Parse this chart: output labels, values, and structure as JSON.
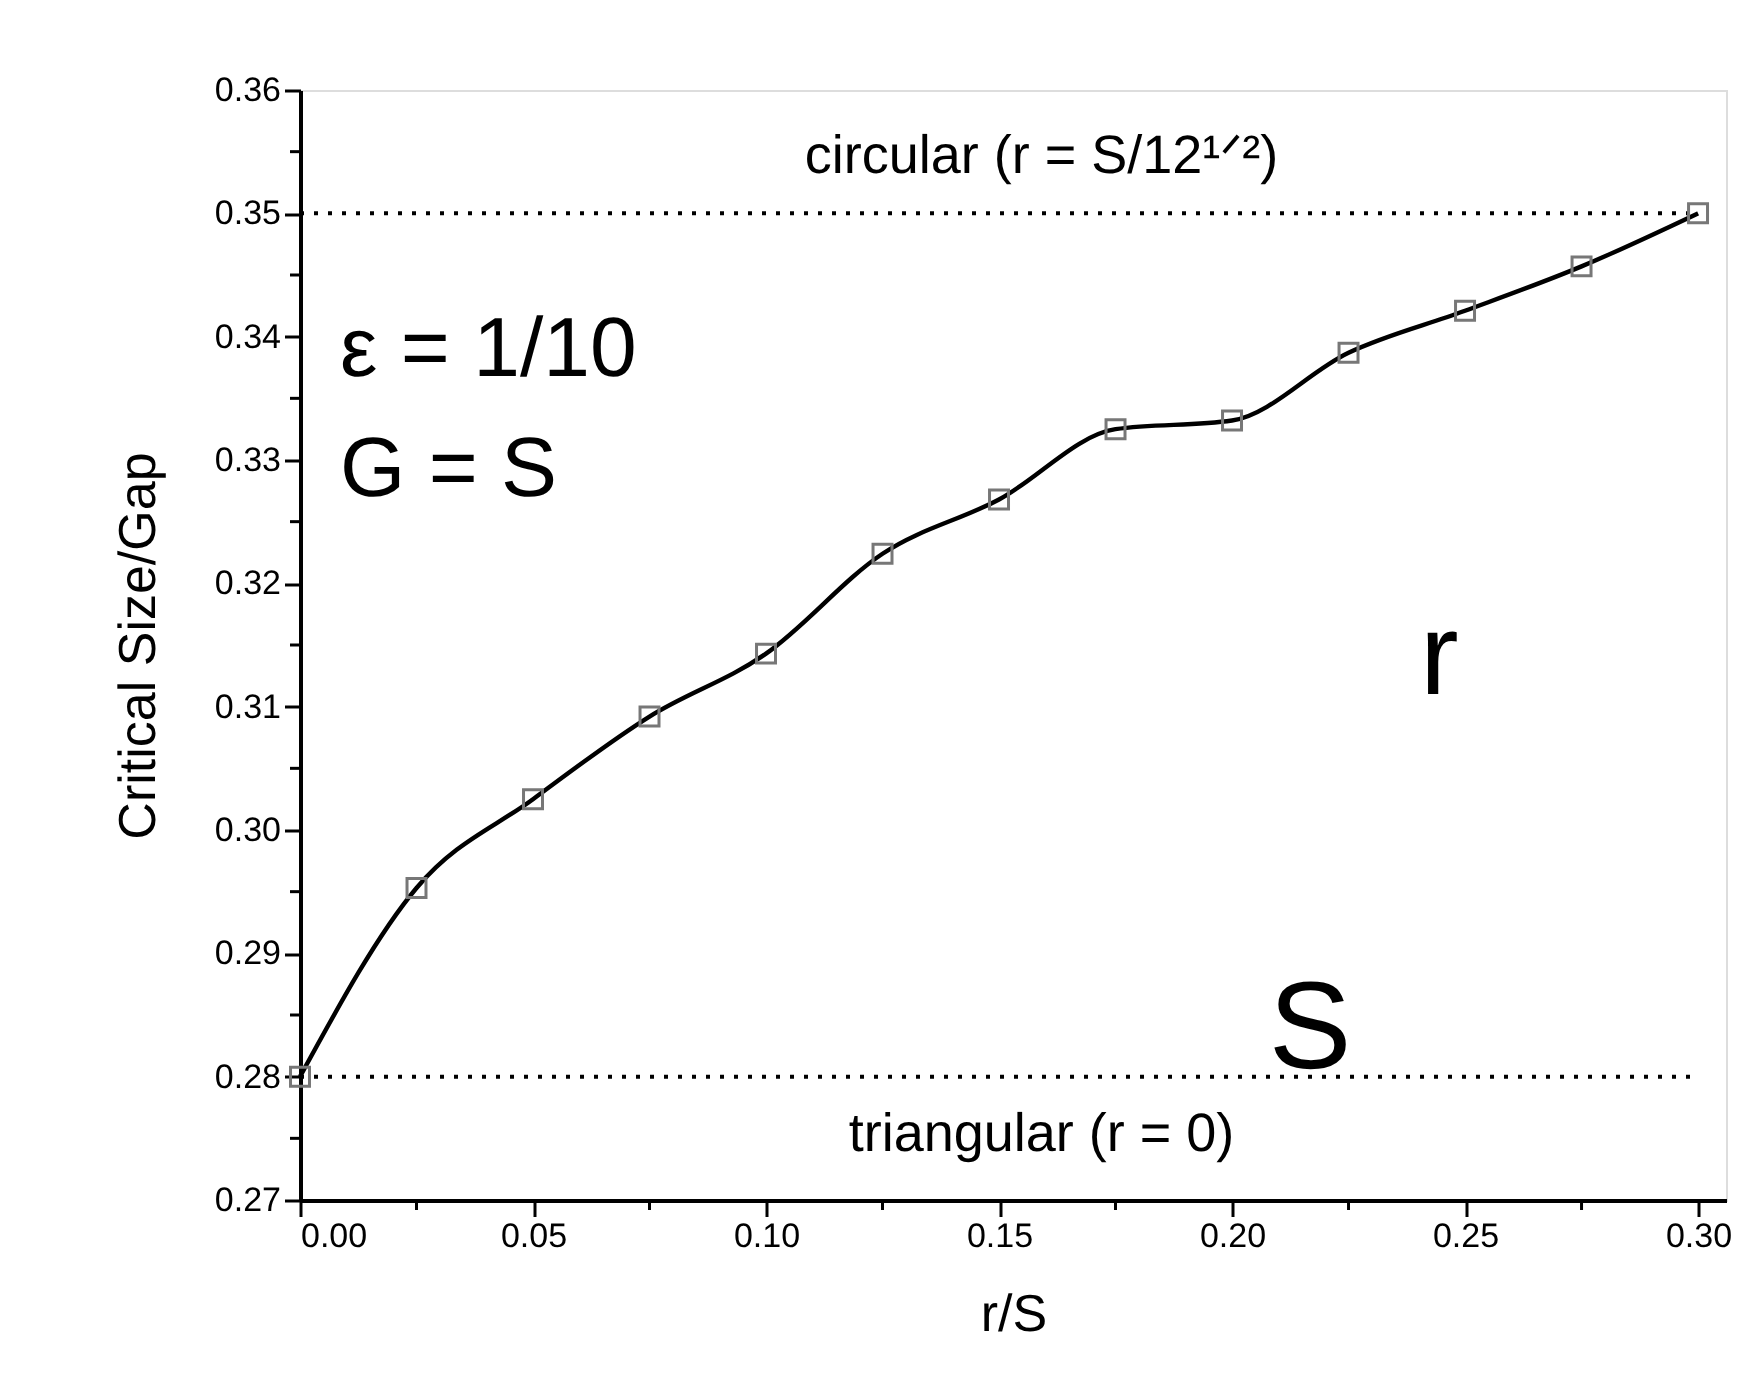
{
  "chart_data": {
    "type": "line",
    "xlabel": "r/S",
    "ylabel": "Critical Size/Gap",
    "x": [
      0,
      0.025,
      0.05,
      0.075,
      0.1,
      0.125,
      0.15,
      0.175,
      0.2,
      0.225,
      0.25,
      0.275,
      0.3
    ],
    "series": [
      {
        "color": "#000000",
        "values": [
          0.28,
          0.2953,
          0.3025,
          0.3092,
          0.3143,
          0.3224,
          0.3268,
          0.3325,
          0.3332,
          0.3387,
          0.3421,
          0.3457,
          0.35
        ]
      }
    ],
    "marker": "square",
    "line_style": "solid",
    "grid": false,
    "xlim": [
      0,
      0.306
    ],
    "ylim": [
      0.27,
      0.36
    ],
    "xticks": [
      {
        "value": 0,
        "label": "0.00"
      },
      {
        "value": 0.025,
        "label": null
      },
      {
        "value": 0.05,
        "label": "0.05"
      },
      {
        "value": 0.075,
        "label": null
      },
      {
        "value": 0.1,
        "label": "0.10"
      },
      {
        "value": 0.125,
        "label": null
      },
      {
        "value": 0.15,
        "label": "0.15"
      },
      {
        "value": 0.175,
        "label": null
      },
      {
        "value": 0.2,
        "label": "0.20"
      },
      {
        "value": 0.225,
        "label": null
      },
      {
        "value": 0.25,
        "label": "0.25"
      },
      {
        "value": 0.275,
        "label": null
      },
      {
        "value": 0.3,
        "label": "0.30"
      }
    ],
    "yticks": [
      0.27,
      {
        "value": 0.275,
        "label": null
      },
      {
        "value": 0.28,
        "label": "0.28"
      },
      {
        "value": 0.285,
        "label": null
      },
      {
        "value": 0.29,
        "label": "0.29"
      },
      {
        "value": 0.295,
        "label": null
      },
      {
        "value": 0.3,
        "label": "0.30"
      },
      {
        "value": 0.305,
        "label": null
      },
      {
        "value": 0.31,
        "label": "0.31"
      },
      {
        "value": 0.315,
        "label": null
      },
      {
        "value": 0.32,
        "label": "0.32"
      },
      {
        "value": 0.325,
        "label": null
      },
      {
        "value": 0.33,
        "label": "0.33"
      },
      {
        "value": 0.335,
        "label": null
      },
      {
        "value": 0.34,
        "label": "0.34"
      },
      {
        "value": 0.345,
        "label": null
      },
      {
        "value": 0.35,
        "label": "0.35"
      },
      {
        "value": 0.355,
        "label": null
      },
      {
        "value": 0.36,
        "label": "0.36"
      }
    ],
    "ref_lines": [
      {
        "axis": "y",
        "value": 0.35,
        "label": "circular (r = S/12¹ᐟ²)",
        "line_style": "dotted",
        "color": "#000000"
      },
      {
        "axis": "y",
        "value": 0.28,
        "label": "triangular (r = 0)",
        "line_style": "dotted",
        "color": "#000000"
      }
    ],
    "annotations": [
      "ε = 1/10",
      "G = S",
      "r",
      "S"
    ]
  }
}
